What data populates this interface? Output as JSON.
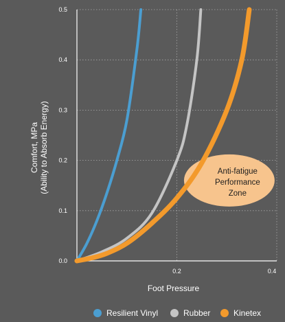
{
  "chart_data": {
    "type": "line",
    "xlabel": "Foot Pressure",
    "ylabel_lines": [
      "Comfort, MPa",
      "(Ability to Absorb Energy)"
    ],
    "xlim": [
      0,
      0.4
    ],
    "ylim": [
      0,
      0.5
    ],
    "x_ticks": [
      {
        "value": 0.2,
        "label": "0.2"
      },
      {
        "value": 0.4,
        "label": "0.4"
      }
    ],
    "y_ticks": [
      {
        "value": 0.0,
        "label": "0.0"
      },
      {
        "value": 0.1,
        "label": "0.1"
      },
      {
        "value": 0.2,
        "label": "0.2"
      },
      {
        "value": 0.3,
        "label": "0.3"
      },
      {
        "value": 0.4,
        "label": "0.4"
      },
      {
        "value": 0.5,
        "label": "0.5"
      }
    ],
    "grid": true,
    "legend_position": "bottom",
    "series": [
      {
        "name": "Resilient Vinyl",
        "color": "#4b9ed1",
        "x": [
          0.0,
          0.02,
          0.04,
          0.06,
          0.08,
          0.1,
          0.12,
          0.128
        ],
        "y": [
          0.0,
          0.035,
          0.08,
          0.135,
          0.2,
          0.28,
          0.42,
          0.5
        ]
      },
      {
        "name": "Rubber",
        "color": "#c4c4c4",
        "x": [
          0.0,
          0.05,
          0.1,
          0.15,
          0.2,
          0.22,
          0.24,
          0.248
        ],
        "y": [
          0.0,
          0.018,
          0.045,
          0.095,
          0.2,
          0.27,
          0.4,
          0.5
        ]
      },
      {
        "name": "Kinetex",
        "color": "#f39a2c",
        "x": [
          0.0,
          0.03,
          0.06,
          0.1,
          0.15,
          0.2,
          0.25,
          0.3,
          0.33,
          0.345
        ],
        "y": [
          0.0,
          0.006,
          0.015,
          0.035,
          0.075,
          0.125,
          0.195,
          0.3,
          0.4,
          0.5
        ]
      }
    ],
    "annotation": {
      "lines": [
        "Anti-fatigue",
        "Performance",
        "Zone"
      ],
      "color": "#f7c48d",
      "x_center": 0.305,
      "y_center": 0.16
    }
  }
}
